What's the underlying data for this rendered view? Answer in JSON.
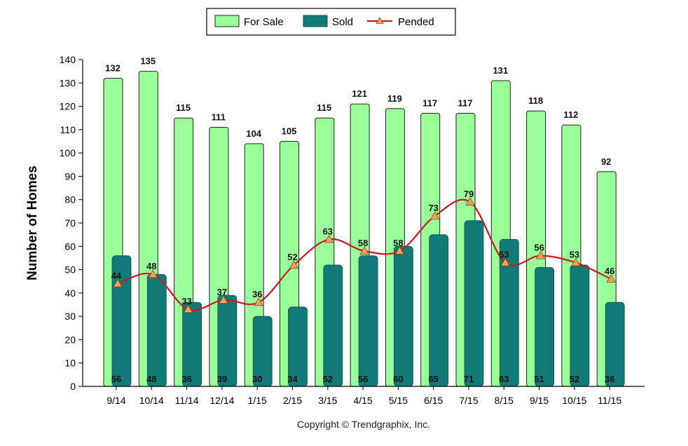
{
  "chart_data": {
    "type": "bar",
    "categories": [
      "9/14",
      "10/14",
      "11/14",
      "12/14",
      "1/15",
      "2/15",
      "3/15",
      "4/15",
      "5/15",
      "6/15",
      "7/15",
      "8/15",
      "9/15",
      "10/15",
      "11/15"
    ],
    "series": [
      {
        "name": "For Sale",
        "kind": "bar",
        "color": "#99ff99",
        "values": [
          132,
          135,
          115,
          111,
          104,
          105,
          115,
          121,
          119,
          117,
          117,
          131,
          118,
          112,
          92
        ]
      },
      {
        "name": "Sold",
        "kind": "bar",
        "color": "#127a76",
        "values": [
          56,
          48,
          36,
          39,
          30,
          34,
          52,
          56,
          60,
          65,
          71,
          63,
          51,
          52,
          36
        ]
      },
      {
        "name": "Pended",
        "kind": "line",
        "color": "#cc1a1a",
        "marker": "triangle",
        "marker_color": "#f3a25a",
        "values": [
          44,
          48,
          33,
          37,
          36,
          52,
          63,
          58,
          58,
          73,
          79,
          53,
          56,
          53,
          46
        ]
      }
    ],
    "ylabel": "Number of Homes",
    "xlabel": "",
    "ylim": [
      0,
      140
    ],
    "yticks": [
      0,
      10,
      20,
      30,
      40,
      50,
      60,
      70,
      80,
      90,
      100,
      110,
      120,
      130,
      140
    ],
    "grid": false,
    "legend_position": "top-center"
  },
  "footer": {
    "copyright": "Copyright © Trendgraphix, Inc."
  }
}
